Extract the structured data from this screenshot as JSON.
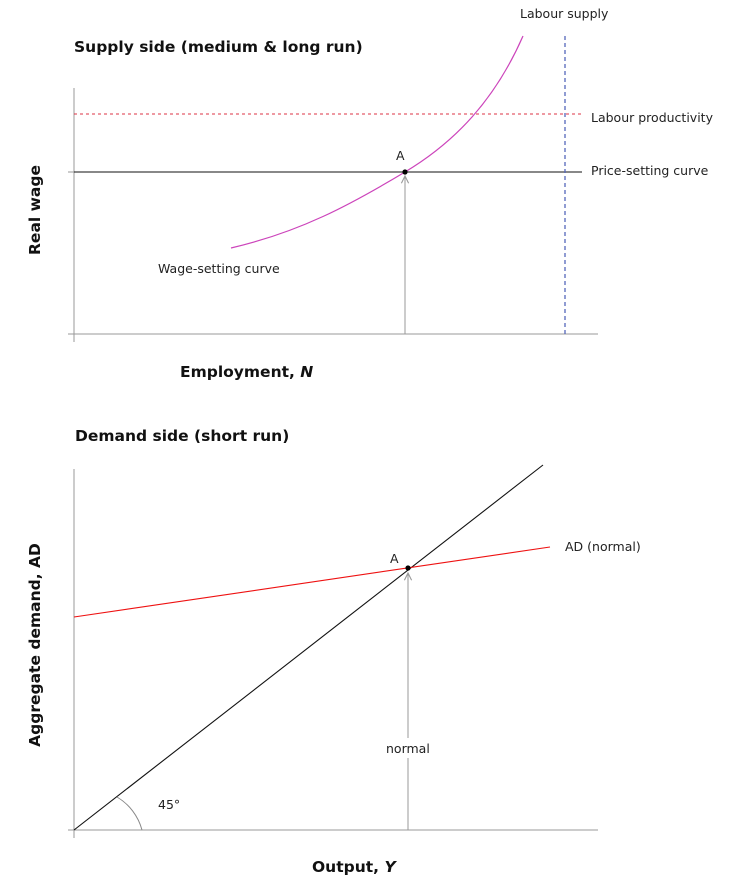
{
  "supply": {
    "title": "Supply side (medium & long run)",
    "x_label": "Employment, ",
    "x_var": "N",
    "y_label": "Real wage",
    "labels": {
      "labour_supply": "Labour supply",
      "labour_productivity": "Labour productivity",
      "price_setting": "Price-setting curve",
      "wage_setting": "Wage-setting curve",
      "point": "A"
    },
    "colors": {
      "labour_supply": "#5566bb",
      "labour_productivity": "#dd3344",
      "price_setting": "#111111",
      "wage_setting": "#cc44bb",
      "guide": "#999999"
    }
  },
  "demand": {
    "title": "Demand side (short run)",
    "x_label": "Output, ",
    "x_var": "Y",
    "y_label": "Aggregate demand, AD",
    "labels": {
      "ad": "AD (normal)",
      "point": "A",
      "normal": "normal",
      "angle": "45°"
    },
    "colors": {
      "ad": "#ee1111",
      "forty_five": "#111111",
      "guide": "#999999"
    }
  }
}
